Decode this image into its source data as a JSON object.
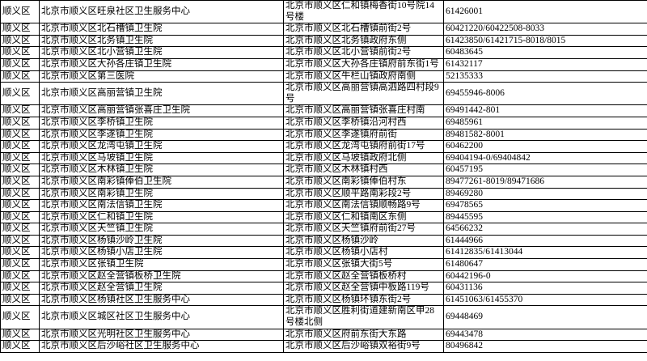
{
  "table": {
    "rows": [
      [
        "顺义区",
        "北京市顺义区旺泉社区卫生服务中心",
        "北京市顺义区仁和镇梅香街10号院14号楼",
        "61426001"
      ],
      [
        "顺义区",
        "北京市顺义区北石槽镇卫生院",
        "北京市顺义区北石槽镇前街2号",
        "60421220/60422508-8033"
      ],
      [
        "顺义区",
        "北京市顺义区北务镇卫生院",
        "北京市顺义区北务镇政府东侧",
        "61423850/61421715-8018/8015"
      ],
      [
        "顺义区",
        "北京市顺义区北小营镇卫生院",
        "北京市顺义区北小营镇前街2号",
        "60483645"
      ],
      [
        "顺义区",
        "北京市顺义区大孙各庄镇卫生院",
        "北京市顺义区大孙各庄镇府前东街1号",
        "61432117"
      ],
      [
        "顺义区",
        "北京市顺义区第三医院",
        "北京市顺义区牛栏山镇政府南侧",
        "52135333"
      ],
      [
        "顺义区",
        "北京市顺义区高丽营镇卫生院",
        "北京市顺义区高丽营镇高泗路四村段9号",
        "69455946-8006"
      ],
      [
        "顺义区",
        "北京市顺义区高丽营镇张喜庄卫生院",
        "北京市顺义区高丽营镇张喜庄村南",
        "69491442-801"
      ],
      [
        "顺义区",
        "北京市顺义区李桥镇卫生院",
        "北京市顺义区李桥镇沿河村西",
        "69485961"
      ],
      [
        "顺义区",
        "北京市顺义区李遂镇卫生院",
        "北京市顺义区李遂镇府前街",
        "89481582-8001"
      ],
      [
        "顺义区",
        "北京市顺义区龙湾屯镇卫生院",
        "北京市顺义区龙湾屯镇府前街17号",
        "60462200"
      ],
      [
        "顺义区",
        "北京市顺义区马坡镇卫生院",
        "北京市顺义区马坡镇政府北侧",
        "69404194-0/69404842"
      ],
      [
        "顺义区",
        "北京市顺义区木林镇卫生院",
        "北京市顺义区木林镇村西",
        "60457195"
      ],
      [
        "顺义区",
        "北京市顺义区南彩镇俸伯卫生院",
        "北京市顺义区南彩镇俸伯村东",
        "89477261-8019/89471686"
      ],
      [
        "顺义区",
        "北京市顺义区南彩镇卫生院",
        "北京市顺义区顺平路南彩段2号",
        "89469280"
      ],
      [
        "顺义区",
        "北京市顺义区南法信镇卫生院",
        "北京市顺义区南法信镇顺畅路9号",
        "69478565"
      ],
      [
        "顺义区",
        "北京市顺义区仁和镇卫生院",
        "北京市顺义区仁和镇南区东侧",
        "89445595"
      ],
      [
        "顺义区",
        "北京市顺义区天竺镇卫生院",
        "北京市顺义区天竺镇府前街27号",
        "64566232"
      ],
      [
        "顺义区",
        "北京市顺义区杨镇沙岭卫生院",
        "北京市顺义区杨镇沙岭",
        "61444966"
      ],
      [
        "顺义区",
        "北京市顺义区杨镇小店卫生院",
        "北京市顺义区杨镇小店村",
        "61412835/61413044"
      ],
      [
        "顺义区",
        "北京市顺义区张镇卫生院",
        "北京市顺义区张镇大街5号",
        "61480647"
      ],
      [
        "顺义区",
        "北京市顺义区赵全营镇板桥卫生院",
        "北京市顺义区赵全营镇板桥村",
        "60442196-0"
      ],
      [
        "顺义区",
        "北京市顺义区赵全营镇卫生院",
        "北京市顺义区赵全营镇中板路119号",
        "60431136"
      ],
      [
        "顺义区",
        "北京市顺义区杨镇社区卫生服务中心",
        "北京市顺义区杨镇环镇东街2号",
        "61451063/61455370"
      ],
      [
        "顺义区",
        "北京市顺义区城区社区卫生服务中心",
        "北京市顺义区胜利街道建新南区甲28号楼北侧",
        "69448469"
      ],
      [
        "顺义区",
        "北京市顺义区光明社区卫生服务中心",
        "北京市顺义区府前东街大东路",
        "69443478"
      ],
      [
        "顺义区",
        "北京市顺义区后沙峪社区卫生服务中心",
        "北京市顺义区后沙峪镇双裕街9号",
        "80496842"
      ]
    ]
  }
}
